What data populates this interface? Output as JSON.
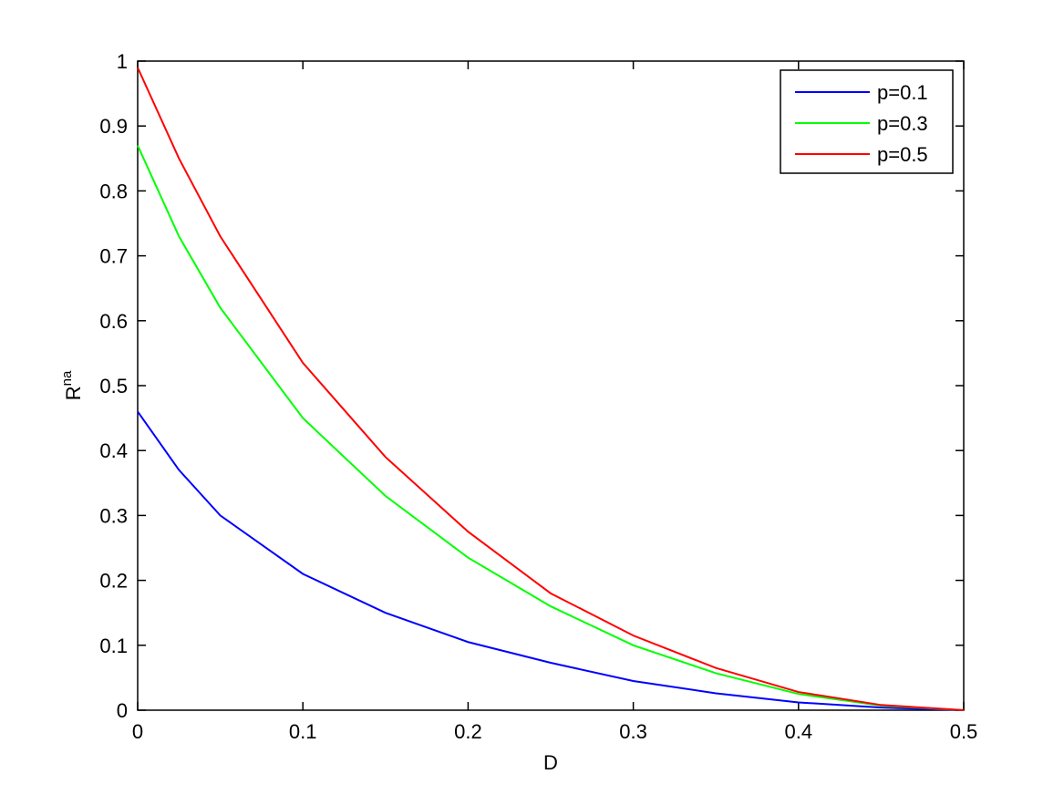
{
  "chart_data": {
    "type": "line",
    "xlabel": "D",
    "ylabel": "R",
    "ylabel_superscript": "na",
    "x": [
      0,
      0.025,
      0.05,
      0.1,
      0.15,
      0.2,
      0.25,
      0.3,
      0.35,
      0.4,
      0.45,
      0.5
    ],
    "series": [
      {
        "name": "p=0.1",
        "color": "#0000ff",
        "values": [
          0.46,
          0.37,
          0.3,
          0.21,
          0.15,
          0.105,
          0.073,
          0.045,
          0.026,
          0.012,
          0.004,
          0
        ]
      },
      {
        "name": "p=0.3",
        "color": "#00ff00",
        "values": [
          0.87,
          0.73,
          0.62,
          0.45,
          0.33,
          0.235,
          0.16,
          0.1,
          0.057,
          0.025,
          0.007,
          0
        ]
      },
      {
        "name": "p=0.5",
        "color": "#ff0000",
        "values": [
          0.99,
          0.85,
          0.73,
          0.535,
          0.39,
          0.275,
          0.18,
          0.115,
          0.065,
          0.028,
          0.008,
          0
        ]
      }
    ],
    "xlim": [
      0,
      0.5
    ],
    "ylim": [
      0,
      1
    ],
    "xticks": [
      0,
      0.1,
      0.2,
      0.3,
      0.4,
      0.5
    ],
    "yticks": [
      0,
      0.1,
      0.2,
      0.3,
      0.4,
      0.5,
      0.6,
      0.7,
      0.8,
      0.9,
      1
    ],
    "grid": false,
    "legend": "top-right"
  }
}
